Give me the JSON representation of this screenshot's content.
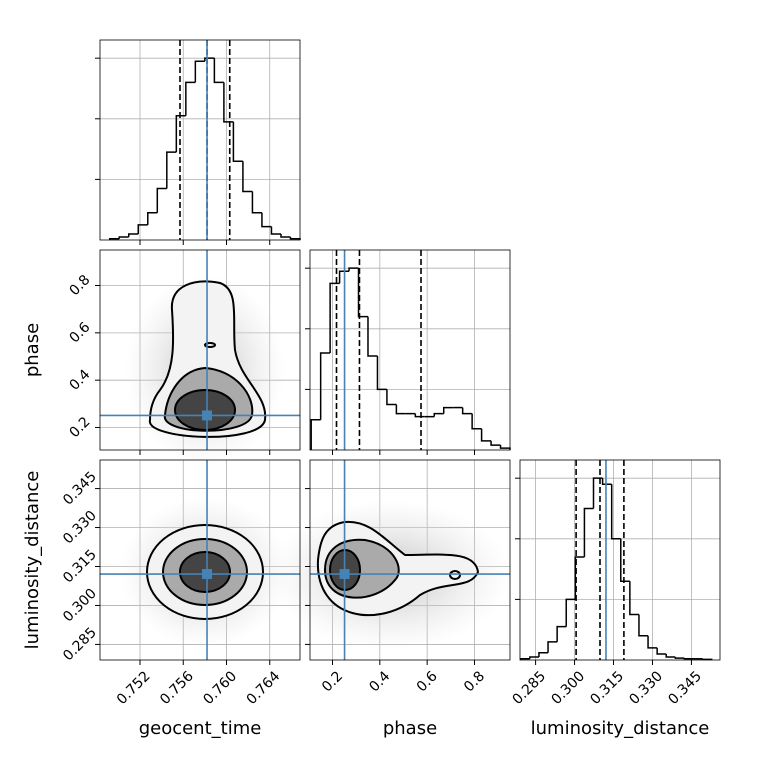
{
  "chart_data": {
    "type": "corner",
    "truth_color": "#4682b4",
    "hist_color": "#000000",
    "grid": true,
    "hist_ylim": [
      0,
      3.3
    ],
    "hist_yticks": [
      1,
      2,
      3
    ],
    "parameters": [
      {
        "name": "geocent_time",
        "lim": [
          0.7483,
          0.7668
        ],
        "ticks": [
          0.752,
          0.756,
          {
            "value": 0.76,
            "label": "0.760"
          },
          0.764
        ],
        "truth": 0.7582,
        "quantiles": [
          0.7557,
          0.7582,
          0.7603
        ],
        "bins": [
          0.7492,
          0.75008,
          0.75096,
          0.75184,
          0.75272,
          0.7536,
          0.75448,
          0.75536,
          0.75624,
          0.75712,
          0.758,
          0.75888,
          0.75976,
          0.76064,
          0.76152,
          0.7624,
          0.76328,
          0.76416,
          0.76504,
          0.76592,
          0.7668
        ],
        "counts": [
          0.02,
          0.05,
          0.1,
          0.25,
          0.45,
          0.85,
          1.45,
          2.05,
          2.6,
          2.95,
          3.0,
          2.6,
          1.95,
          1.3,
          0.8,
          0.45,
          0.22,
          0.1,
          0.05,
          0.02
        ]
      },
      {
        "name": "phase",
        "lim": [
          0.105,
          0.95
        ],
        "ticks": [
          0.2,
          0.4,
          0.6,
          0.8
        ],
        "truth": 0.251,
        "quantiles": [
          0.217,
          0.314,
          0.574
        ],
        "bins": [
          0.11,
          0.15,
          0.19,
          0.23,
          0.27,
          0.31,
          0.35,
          0.39,
          0.43,
          0.47,
          0.51,
          0.55,
          0.59,
          0.63,
          0.67,
          0.71,
          0.75,
          0.79,
          0.83,
          0.87,
          0.91,
          0.95
        ],
        "counts": [
          0.5,
          1.6,
          2.75,
          2.95,
          3.0,
          2.2,
          1.55,
          1.0,
          0.75,
          0.6,
          0.6,
          0.55,
          0.55,
          0.6,
          0.7,
          0.7,
          0.6,
          0.35,
          0.15,
          0.08,
          0.03
        ]
      },
      {
        "name": "luminosity_distance",
        "lim": [
          0.279,
          0.356
        ],
        "ticks": [
          0.285,
          {
            "value": 0.3,
            "label": "0.300"
          },
          0.315,
          {
            "value": 0.33,
            "label": "0.330"
          },
          0.345
        ],
        "truth": 0.3121,
        "quantiles": [
          0.3006,
          0.3098,
          0.319
        ],
        "bins": [
          0.2793,
          0.2828,
          0.2863,
          0.2898,
          0.2933,
          0.2968,
          0.3003,
          0.3038,
          0.3073,
          0.3108,
          0.3143,
          0.3178,
          0.3213,
          0.3248,
          0.3283,
          0.3318,
          0.3353,
          0.3388,
          0.3423,
          0.3458,
          0.3493,
          0.3528
        ],
        "counts": [
          0.02,
          0.05,
          0.12,
          0.3,
          0.55,
          1.0,
          1.7,
          2.5,
          3.0,
          2.9,
          2.0,
          1.3,
          0.75,
          0.4,
          0.2,
          0.1,
          0.05,
          0.03,
          0.02,
          0.02,
          0.01
        ]
      }
    ]
  }
}
